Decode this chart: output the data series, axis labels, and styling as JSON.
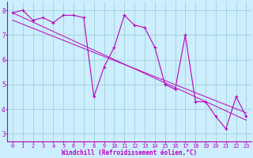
{
  "xlabel": "Windchill (Refroidissement éolien,°C)",
  "bg_color": "#cceeff",
  "line_color": "#bb00bb",
  "grid_color": "#99cccc",
  "hours": [
    0,
    1,
    2,
    3,
    4,
    5,
    6,
    7,
    8,
    9,
    10,
    11,
    12,
    13,
    14,
    15,
    16,
    17,
    18,
    19,
    20,
    21,
    22,
    23
  ],
  "windchill": [
    7.9,
    8.0,
    7.6,
    7.7,
    7.5,
    7.8,
    7.8,
    7.7,
    4.5,
    5.7,
    6.5,
    7.8,
    7.4,
    7.3,
    6.5,
    5.0,
    4.8,
    7.0,
    4.3,
    4.3,
    3.7,
    3.2,
    4.5,
    3.7
  ],
  "trend1_start_x": 0,
  "trend1_start_y": 7.9,
  "trend1_end_x": 23,
  "trend1_end_y": 3.55,
  "trend2_start_x": 0,
  "trend2_start_y": 7.6,
  "trend2_end_x": 23,
  "trend2_end_y": 3.85,
  "ylim_min": 2.7,
  "ylim_max": 8.35,
  "xlim_min": -0.5,
  "xlim_max": 23.5,
  "yticks": [
    3,
    4,
    5,
    6,
    7,
    8
  ],
  "xticks": [
    0,
    1,
    2,
    3,
    4,
    5,
    6,
    7,
    8,
    9,
    10,
    11,
    12,
    13,
    14,
    15,
    16,
    17,
    18,
    19,
    20,
    21,
    22,
    23
  ],
  "xlabel_fontsize": 5.5,
  "tick_fontsize": 5,
  "ytick_fontsize": 5.5
}
